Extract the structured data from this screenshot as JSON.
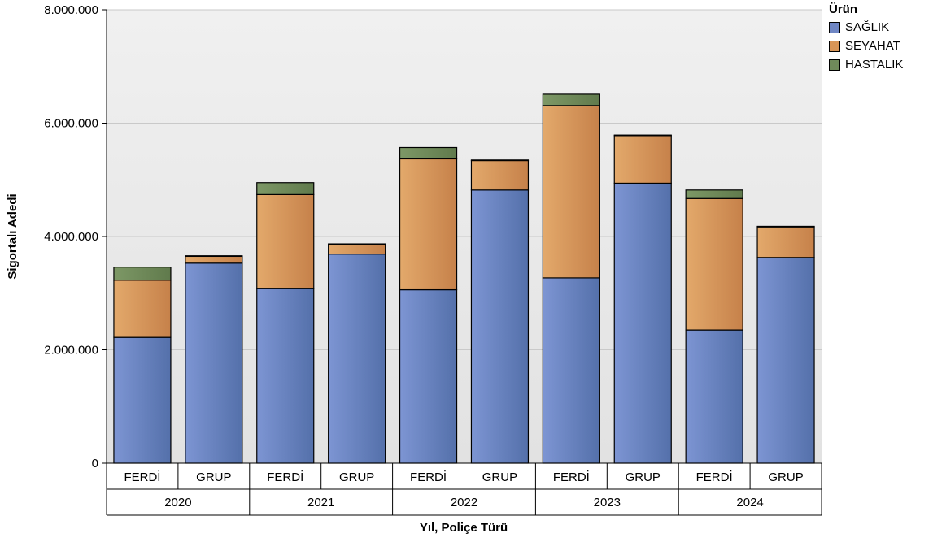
{
  "chart_data": {
    "type": "bar",
    "stacked": true,
    "ylabel": "Sigortalı Adedi",
    "xlabel": "Yıl, Poliçe Türü",
    "ylim": [
      0,
      8000000
    ],
    "yticks": [
      "0",
      "2.000.000",
      "4.000.000",
      "6.000.000",
      "8.000.000"
    ],
    "ytick_values": [
      0,
      2000000,
      4000000,
      6000000,
      8000000
    ],
    "years": [
      "2020",
      "2021",
      "2022",
      "2023",
      "2024"
    ],
    "categories": [
      "FERDİ",
      "GRUP",
      "FERDİ",
      "GRUP",
      "FERDİ",
      "GRUP",
      "FERDİ",
      "GRUP",
      "FERDİ",
      "GRUP"
    ],
    "series": [
      {
        "name": "SAĞLIK",
        "color": "#6f86c4",
        "values": [
          2220000,
          3530000,
          3080000,
          3690000,
          3060000,
          4820000,
          3270000,
          4940000,
          2350000,
          3630000
        ]
      },
      {
        "name": "SEYAHAT",
        "color": "#d89557",
        "values": [
          1010000,
          120000,
          1660000,
          170000,
          2310000,
          520000,
          3040000,
          840000,
          2320000,
          540000
        ]
      },
      {
        "name": "HASTALIK",
        "color": "#6f8a5a",
        "values": [
          230000,
          10000,
          210000,
          10000,
          200000,
          10000,
          200000,
          10000,
          150000,
          10000
        ]
      }
    ],
    "legend": {
      "title": "Ürün",
      "position": "top-right"
    },
    "grid": true
  }
}
